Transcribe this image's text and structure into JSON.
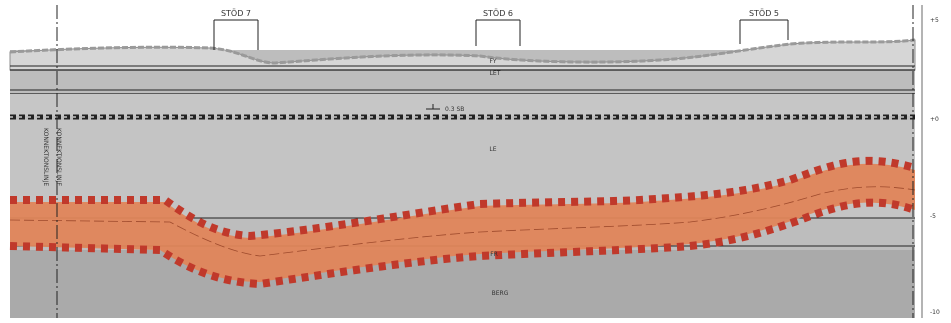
{
  "supports": [
    {
      "label": "STÖD 7"
    },
    {
      "label": "STÖD 6"
    },
    {
      "label": "STÖD 5"
    }
  ],
  "soil_layers": {
    "fy": "FY",
    "let": "LET",
    "le": "LE",
    "fr": "FR",
    "berg": "BERG"
  },
  "water_level_label": "0.3 SB",
  "vertical_labels": {
    "line_a": "KONNEKTIONSLINJE",
    "line_b": "KONNEKTIONSLINJE"
  },
  "elevation_labels": [
    "+5",
    "+0",
    "-5",
    "-10"
  ],
  "colors": {
    "background": "#bdbdbd",
    "surface_fill": "#d4d4d4",
    "tunnel_fill": "#e0855a",
    "tunnel_dash": "#c0392b",
    "sheet_pile": "#222222"
  }
}
